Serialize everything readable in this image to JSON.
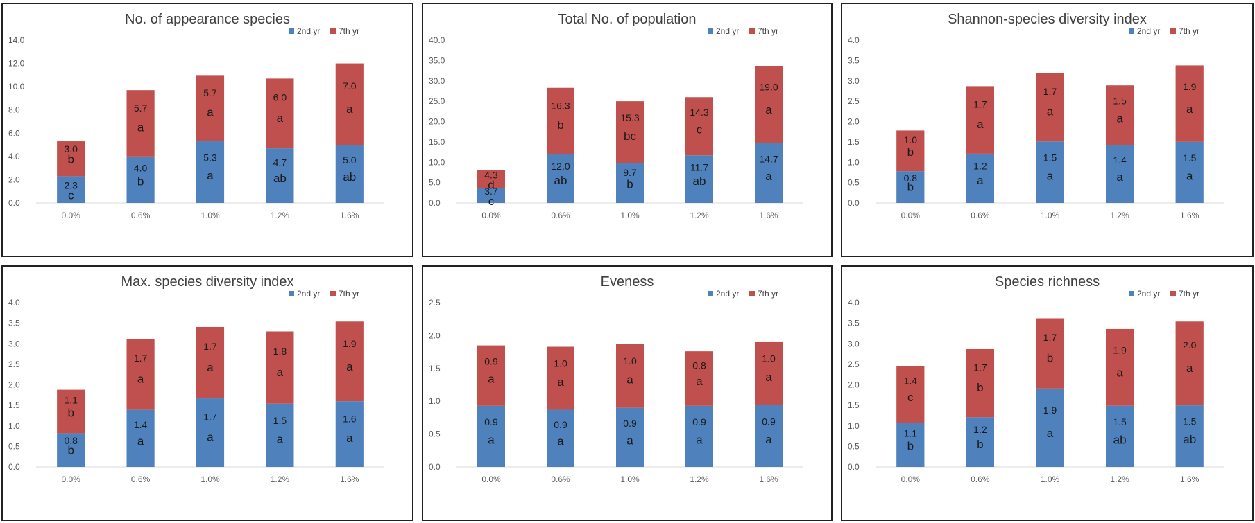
{
  "colors": {
    "series1": "#4f81bd",
    "series2": "#c0504d",
    "axis": "#d9d9d9"
  },
  "chart_data": [
    {
      "type": "bar",
      "stacked": true,
      "title": "No. of appearance species",
      "categories": [
        "0.0%",
        "0.6%",
        "1.0%",
        "1.2%",
        "1.6%"
      ],
      "yticks": [
        "0.0",
        "2.0",
        "4.0",
        "6.0",
        "8.0",
        "10.0",
        "12.0",
        "14.0"
      ],
      "ylim": [
        0,
        14
      ],
      "legend": [
        "2nd yr",
        "7th yr"
      ],
      "series": [
        {
          "name": "2nd yr",
          "values": [
            2.3,
            4.0,
            5.3,
            4.7,
            5.0
          ],
          "labels": [
            "2.3",
            "4.0",
            "5.3",
            "4.7",
            "5.0"
          ],
          "letters": [
            "c",
            "b",
            "a",
            "ab",
            "ab"
          ]
        },
        {
          "name": "7th yr",
          "values": [
            3.0,
            5.7,
            5.7,
            6.0,
            7.0
          ],
          "labels": [
            "3.0",
            "5.7",
            "5.7",
            "6.0",
            "7.0"
          ],
          "letters": [
            "b",
            "a",
            "a",
            "a",
            "a"
          ]
        }
      ]
    },
    {
      "type": "bar",
      "stacked": true,
      "title": "Total No. of population",
      "categories": [
        "0.0%",
        "0.6%",
        "1.0%",
        "1.2%",
        "1.6%"
      ],
      "yticks": [
        "0.0",
        "5.0",
        "10.0",
        "15.0",
        "20.0",
        "25.0",
        "30.0",
        "35.0",
        "40.0"
      ],
      "ylim": [
        0,
        40
      ],
      "legend": [
        "2nd yr",
        "7th yr"
      ],
      "series": [
        {
          "name": "2nd yr",
          "values": [
            3.7,
            12.0,
            9.7,
            11.7,
            14.7
          ],
          "labels": [
            "3.7",
            "12.0",
            "9.7",
            "11.7",
            "14.7"
          ],
          "letters": [
            "c",
            "ab",
            "b",
            "ab",
            "a"
          ]
        },
        {
          "name": "7th yr",
          "values": [
            4.3,
            16.3,
            15.3,
            14.3,
            19.0
          ],
          "labels": [
            "4.3",
            "16.3",
            "15.3",
            "14.3",
            "19.0"
          ],
          "letters": [
            "d",
            "b",
            "bc",
            "c",
            "a"
          ]
        }
      ]
    },
    {
      "type": "bar",
      "stacked": true,
      "title": "Shannon-species diversity index",
      "categories": [
        "0.0%",
        "0.6%",
        "1.0%",
        "1.2%",
        "1.6%"
      ],
      "yticks": [
        "0.0",
        "0.5",
        "1.0",
        "1.5",
        "2.0",
        "2.5",
        "3.0",
        "3.5",
        "4.0"
      ],
      "ylim": [
        0,
        4
      ],
      "legend": [
        "2nd yr",
        "7th yr"
      ],
      "series": [
        {
          "name": "2nd yr",
          "values": [
            0.78,
            1.21,
            1.51,
            1.43,
            1.5
          ],
          "labels": [
            "0.8",
            "1.2",
            "1.5",
            "1.4",
            "1.5"
          ],
          "letters": [
            "b",
            "a",
            "a",
            "a",
            "a"
          ]
        },
        {
          "name": "7th yr",
          "values": [
            1.0,
            1.66,
            1.69,
            1.46,
            1.88
          ],
          "labels": [
            "1.0",
            "1.7",
            "1.7",
            "1.5",
            "1.9"
          ],
          "letters": [
            "b",
            "a",
            "a",
            "a",
            "a"
          ]
        }
      ]
    },
    {
      "type": "bar",
      "stacked": true,
      "title": "Max. species diversity index",
      "categories": [
        "0.0%",
        "0.6%",
        "1.0%",
        "1.2%",
        "1.6%"
      ],
      "yticks": [
        "0.0",
        "0.5",
        "1.0",
        "1.5",
        "2.0",
        "2.5",
        "3.0",
        "3.5",
        "4.0"
      ],
      "ylim": [
        0,
        4
      ],
      "legend": [
        "2nd yr",
        "7th yr"
      ],
      "series": [
        {
          "name": "2nd yr",
          "values": [
            0.82,
            1.39,
            1.67,
            1.54,
            1.6
          ],
          "labels": [
            "0.8",
            "1.4",
            "1.7",
            "1.5",
            "1.6"
          ],
          "letters": [
            "b",
            "a",
            "a",
            "a",
            "a"
          ]
        },
        {
          "name": "7th yr",
          "values": [
            1.06,
            1.73,
            1.74,
            1.76,
            1.94
          ],
          "labels": [
            "1.1",
            "1.7",
            "1.7",
            "1.8",
            "1.9"
          ],
          "letters": [
            "b",
            "a",
            "a",
            "a",
            "a"
          ]
        }
      ]
    },
    {
      "type": "bar",
      "stacked": true,
      "title": "Eveness",
      "categories": [
        "0.0%",
        "0.6%",
        "1.0%",
        "1.2%",
        "1.6%"
      ],
      "yticks": [
        "0.0",
        "0.5",
        "1.0",
        "1.5",
        "2.0",
        "2.5"
      ],
      "ylim": [
        0,
        2.5
      ],
      "legend": [
        "2nd yr",
        "7th yr"
      ],
      "series": [
        {
          "name": "2nd yr",
          "values": [
            0.93,
            0.87,
            0.9,
            0.93,
            0.94
          ],
          "labels": [
            "0.9",
            "0.9",
            "0.9",
            "0.9",
            "0.9"
          ],
          "letters": [
            "a",
            "a",
            "a",
            "a",
            "a"
          ]
        },
        {
          "name": "7th yr",
          "values": [
            0.92,
            0.96,
            0.97,
            0.83,
            0.97
          ],
          "labels": [
            "0.9",
            "1.0",
            "1.0",
            "0.8",
            "1.0"
          ],
          "letters": [
            "a",
            "a",
            "a",
            "a",
            "a"
          ]
        }
      ]
    },
    {
      "type": "bar",
      "stacked": true,
      "title": "Species  richness",
      "categories": [
        "0.0%",
        "0.6%",
        "1.0%",
        "1.2%",
        "1.6%"
      ],
      "yticks": [
        "0.0",
        "0.5",
        "1.0",
        "1.5",
        "2.0",
        "2.5",
        "3.0",
        "3.5",
        "4.0"
      ],
      "ylim": [
        0,
        4
      ],
      "legend": [
        "2nd yr",
        "7th yr"
      ],
      "series": [
        {
          "name": "2nd yr",
          "values": [
            1.08,
            1.21,
            1.91,
            1.49,
            1.5
          ],
          "labels": [
            "1.1",
            "1.2",
            "1.9",
            "1.5",
            "1.5"
          ],
          "letters": [
            "b",
            "b",
            "a",
            "ab",
            "ab"
          ]
        },
        {
          "name": "7th yr",
          "values": [
            1.38,
            1.66,
            1.71,
            1.87,
            2.04
          ],
          "labels": [
            "1.4",
            "1.7",
            "1.7",
            "1.9",
            "2.0"
          ],
          "letters": [
            "c",
            "b",
            "b",
            "a",
            "a"
          ]
        }
      ]
    }
  ]
}
